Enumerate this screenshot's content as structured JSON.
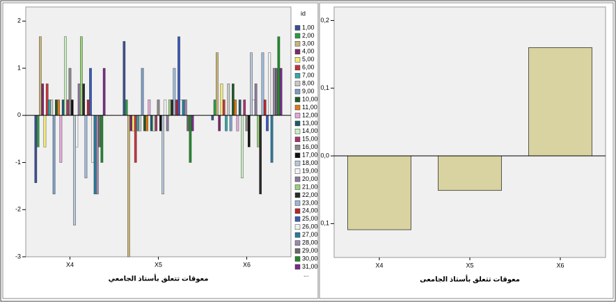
{
  "chart_data": [
    {
      "type": "bar",
      "x_label": "معوقات تتعلق بأستاذ الجامعي",
      "categories": [
        "X4",
        "X5",
        "X6"
      ],
      "ylim": [
        -3,
        2.3
      ],
      "yticks": [
        -3,
        -2,
        -1,
        0,
        1,
        2
      ],
      "legend_title": "id",
      "legend_more": "...",
      "legend": "right",
      "series": [
        {
          "name": "1,00",
          "color": "#3b4f91",
          "values": [
            -1.43,
            1.57,
            -0.1
          ]
        },
        {
          "name": "2,00",
          "color": "#2e9a43",
          "values": [
            -0.67,
            0.33,
            0.33
          ]
        },
        {
          "name": "3,00",
          "color": "#c7b47a",
          "values": [
            1.67,
            -3,
            1.33
          ]
        },
        {
          "name": "4,00",
          "color": "#7a2a6a",
          "values": [
            0.67,
            -0.33,
            -0.33
          ]
        },
        {
          "name": "5,00",
          "color": "#f2ea7a",
          "values": [
            -0.67,
            -0.33,
            0.67
          ]
        },
        {
          "name": "6,00",
          "color": "#c6343a",
          "values": [
            0.67,
            -1,
            0.33
          ]
        },
        {
          "name": "7,00",
          "color": "#3aa6a6",
          "values": [
            0.33,
            -0.33,
            -0.33
          ]
        },
        {
          "name": "8,00",
          "color": "#c8c8c8",
          "values": [
            0.33,
            -0.33,
            0.67
          ]
        },
        {
          "name": "9,00",
          "color": "#7c9cc4",
          "values": [
            -1.67,
            1,
            -0.33
          ]
        },
        {
          "name": "10,00",
          "color": "#1f5a2a",
          "values": [
            0.33,
            -0.33,
            0.67
          ]
        },
        {
          "name": "11,00",
          "color": "#e07a1a",
          "values": [
            0.33,
            -0.33,
            0.33
          ]
        },
        {
          "name": "12,00",
          "color": "#e0a8d8",
          "values": [
            -1,
            0.33,
            -0.33
          ]
        },
        {
          "name": "13,00",
          "color": "#1e5a6a",
          "values": [
            0.33,
            -0.33,
            0.33
          ]
        },
        {
          "name": "14,00",
          "color": "#c8eec0",
          "values": [
            1.67,
            -0.33,
            -1.33
          ]
        },
        {
          "name": "15,00",
          "color": "#a8336a",
          "values": [
            0.33,
            -0.33,
            0.33
          ]
        },
        {
          "name": "16,00",
          "color": "#8a8a8a",
          "values": [
            1,
            0.33,
            -0.33
          ]
        },
        {
          "name": "17,00",
          "color": "#111111",
          "values": [
            0.33,
            -0.33,
            -0.67
          ]
        },
        {
          "name": "18,00",
          "color": "#b8c8d8",
          "values": [
            -2.33,
            -1.67,
            1.33
          ]
        },
        {
          "name": "19,00",
          "color": "#f4f4f4",
          "values": [
            -0.67,
            0.33,
            0.33
          ]
        },
        {
          "name": "20,00",
          "color": "#8a7a9a",
          "values": [
            0.67,
            -0.33,
            0.67
          ]
        },
        {
          "name": "21,00",
          "color": "#9ad07a",
          "values": [
            1.67,
            0.33,
            -0.67
          ]
        },
        {
          "name": "22,00",
          "color": "#2a2a2a",
          "values": [
            0.67,
            0.33,
            -1.67
          ]
        },
        {
          "name": "23,00",
          "color": "#9ab8d8",
          "values": [
            -1.33,
            1,
            1.33
          ]
        },
        {
          "name": "24,00",
          "color": "#b8242a",
          "values": [
            0.33,
            0.33,
            0.33
          ]
        },
        {
          "name": "25,00",
          "color": "#3a5ab8",
          "values": [
            1,
            1.67,
            -0.33
          ]
        },
        {
          "name": "26,00",
          "color": "#f0f0f0",
          "values": [
            -1,
            0.33,
            1.33
          ]
        },
        {
          "name": "27,00",
          "color": "#2a7a9a",
          "values": [
            -1.67,
            0.33,
            -1
          ]
        },
        {
          "name": "28,00",
          "color": "#9a8aaa",
          "values": [
            -1.67,
            0.33,
            1
          ]
        },
        {
          "name": "29,00",
          "color": "#6a6a6a",
          "values": [
            -0.67,
            -0.33,
            1
          ]
        },
        {
          "name": "30,00",
          "color": "#1e8a2a",
          "values": [
            -1,
            -1,
            1.67
          ]
        },
        {
          "name": "31,00",
          "color": "#7a2a8a",
          "values": [
            1,
            -0.33,
            1
          ]
        }
      ]
    },
    {
      "type": "bar",
      "x_label": "معوقات تتعلق بأستاذ الجامعى",
      "categories": [
        "X4",
        "X5",
        "X6"
      ],
      "values": [
        -0.109,
        -0.051,
        0.16
      ],
      "color": "#d8d3a0",
      "ylim": [
        -0.15,
        0.22
      ],
      "yticks": [
        {
          "value": -0.1,
          "label": "0,1"
        },
        {
          "value": 0,
          "label": "0,0"
        },
        {
          "value": 0.1,
          "label": "0,1"
        },
        {
          "value": 0.2,
          "label": "0,2"
        }
      ]
    }
  ]
}
